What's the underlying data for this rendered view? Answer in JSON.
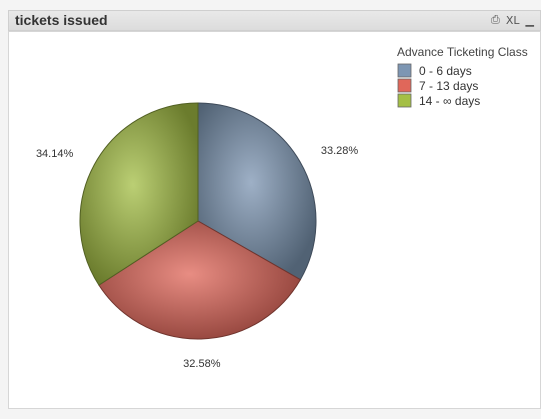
{
  "window": {
    "title": "tickets issued",
    "icons": [
      {
        "name": "print-icon",
        "glyph": "⎙"
      },
      {
        "name": "excel-icon",
        "glyph": "XL"
      },
      {
        "name": "minimize-icon",
        "glyph": "▁"
      }
    ]
  },
  "chart_data": {
    "type": "pie",
    "title": "",
    "legend_title": "Advance Ticketing Class",
    "legend_placement": "top-right",
    "slices": [
      {
        "label": "0 - 6 days",
        "value": 33.28,
        "value_label": "33.28%",
        "color": "#7d96b3"
      },
      {
        "label": "7 - 13 days",
        "value": 32.58,
        "value_label": "32.58%",
        "color": "#e0675a"
      },
      {
        "label": "14 - ∞ days",
        "value": 34.14,
        "value_label": "34.14%",
        "color": "#a4bf45"
      }
    ]
  }
}
